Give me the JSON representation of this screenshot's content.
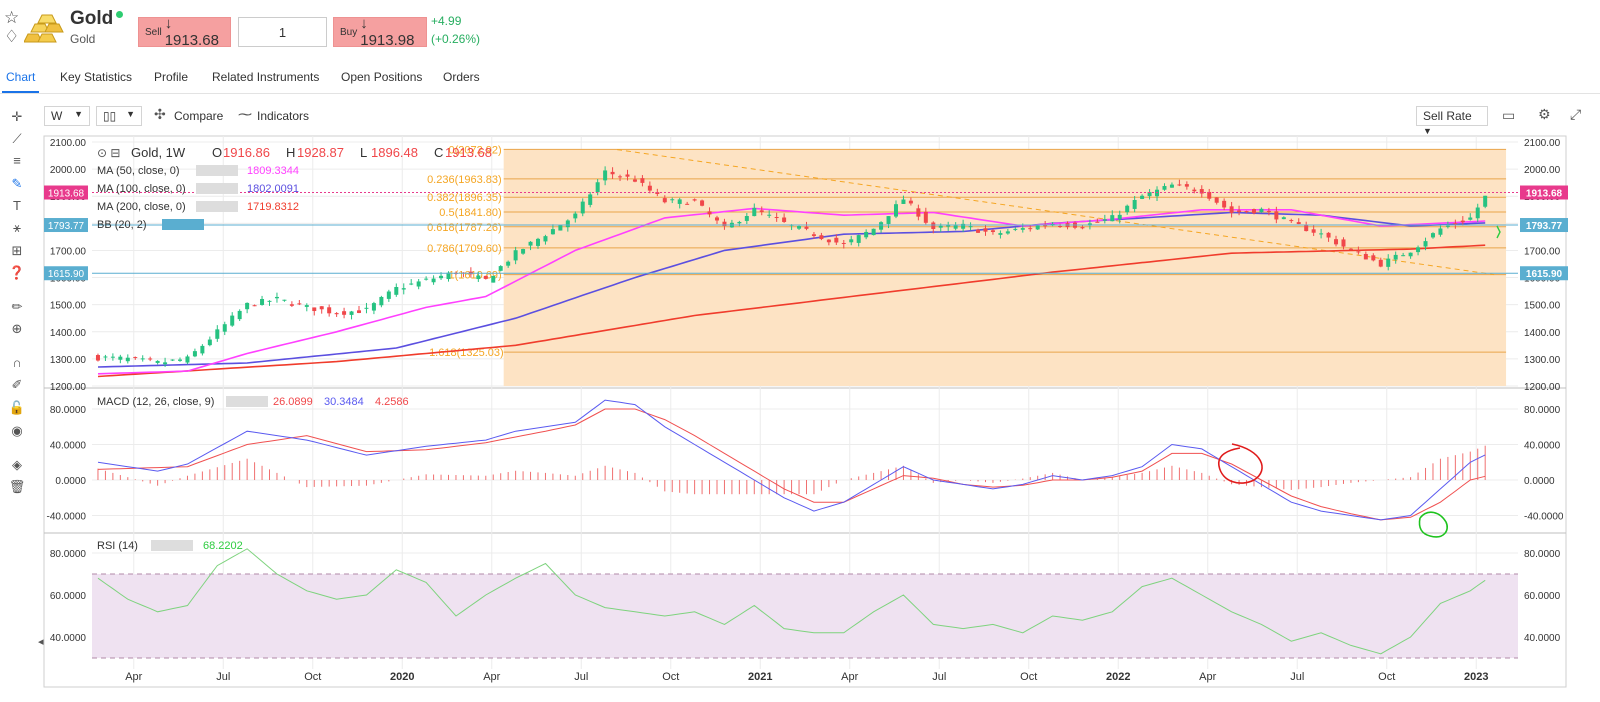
{
  "header": {
    "title": "Gold",
    "subtitle": "Gold",
    "sell_label": "Sell",
    "sell_price": "↓ 1913.68",
    "quantity": "1",
    "buy_label": "Buy",
    "buy_price": "↓ 1913.98",
    "change_abs": "+4.99",
    "change_pct": "(+0.26%)",
    "status_color": "#2ecc71"
  },
  "tabs": [
    "Chart",
    "Key Statistics",
    "Profile",
    "Related Instruments",
    "Open Positions",
    "Orders"
  ],
  "toolbar": {
    "interval": "W",
    "chart_type_icon": "candlestick-icon",
    "compare": "Compare",
    "indicators": "Indicators",
    "rate": "Sell Rate"
  },
  "tool_icons": [
    "crosshair-icon",
    "trendline-icon",
    "fib-icon",
    "brush-icon",
    "text-icon",
    "pattern-icon",
    "measure-icon",
    "help-icon",
    "ruler-icon",
    "zoom-icon",
    "magnet-icon",
    "lock-draw-icon",
    "lock-icon",
    "eye-icon",
    "layers-icon",
    "trash-icon"
  ],
  "legend": {
    "symbol": "Gold, 1W",
    "o_label": "O",
    "open": "1916.86",
    "h_label": "H",
    "high": "1928.87",
    "l_label": "L",
    "low": "1896.48",
    "c_label": "C",
    "close": "1913.68",
    "indicators": [
      {
        "label": "MA (50, close, 0)",
        "value": "1809.3344",
        "color": "#ff40ff"
      },
      {
        "label": "MA (100, close, 0)",
        "value": "1802.0091",
        "color": "#5b4fe0"
      },
      {
        "label": "MA (200, close, 0)",
        "value": "1719.8312",
        "color": "#f03c2c"
      },
      {
        "label": "BB (20, 2)",
        "value": "",
        "color": "#3aa0c8"
      }
    ]
  },
  "price_badges": [
    {
      "value": "1913.68",
      "y": 1913.68,
      "color": "#e83a8c"
    },
    {
      "value": "1793.77",
      "y": 1793.77,
      "color": "#5aaed0"
    },
    {
      "value": "1615.90",
      "y": 1615.9,
      "color": "#5aaed0"
    }
  ],
  "fib_levels": [
    {
      "label": "0(2072.92)",
      "y": 2072.92
    },
    {
      "label": "0.236(1963.83)",
      "y": 1963.83
    },
    {
      "label": "0.382(1896.35)",
      "y": 1896.35
    },
    {
      "label": "0.5(1841.80)",
      "y": 1841.8
    },
    {
      "label": "0.618(1787.26)",
      "y": 1787.26
    },
    {
      "label": "0.786(1709.60)",
      "y": 1709.6
    },
    {
      "label": "1(1610.69)",
      "y": 1610.69
    },
    {
      "label": "1.618(1325.03)",
      "y": 1325.03
    }
  ],
  "macd": {
    "label": "MACD (12, 26, close, 9)",
    "v1": "26.0899",
    "v2": "30.3484",
    "v3": "4.2586"
  },
  "rsi": {
    "label": "RSI (14)",
    "value": "68.2202"
  },
  "chart_data": {
    "type": "candlestick",
    "x_range": [
      "2019-02",
      "2023-02"
    ],
    "price_ylim": [
      1200,
      2100
    ],
    "price_ticks": [
      "2100.00",
      "2000.00",
      "1900.00",
      "1800.00",
      "1700.00",
      "1600.00",
      "1500.00",
      "1400.00",
      "1300.00",
      "1200.00"
    ],
    "macd_ticks": [
      "80.0000",
      "40.0000",
      "0.0000",
      "-40.0000"
    ],
    "rsi_ticks": [
      "80.0000",
      "60.0000",
      "40.0000"
    ],
    "x_ticks": [
      {
        "label": "Apr",
        "t": 1.2,
        "bold": false
      },
      {
        "label": "Jul",
        "t": 4.2,
        "bold": false
      },
      {
        "label": "Oct",
        "t": 7.2,
        "bold": false
      },
      {
        "label": "2020",
        "t": 10.2,
        "bold": true
      },
      {
        "label": "Apr",
        "t": 13.2,
        "bold": false
      },
      {
        "label": "Jul",
        "t": 16.2,
        "bold": false
      },
      {
        "label": "Oct",
        "t": 19.2,
        "bold": false
      },
      {
        "label": "2021",
        "t": 22.2,
        "bold": true
      },
      {
        "label": "Apr",
        "t": 25.2,
        "bold": false
      },
      {
        "label": "Jul",
        "t": 28.2,
        "bold": false
      },
      {
        "label": "Oct",
        "t": 31.2,
        "bold": false
      },
      {
        "label": "2022",
        "t": 34.2,
        "bold": true
      },
      {
        "label": "Apr",
        "t": 37.2,
        "bold": false
      },
      {
        "label": "Jul",
        "t": 40.2,
        "bold": false
      },
      {
        "label": "Oct",
        "t": 43.2,
        "bold": false
      },
      {
        "label": "2023",
        "t": 46.2,
        "bold": true
      }
    ],
    "close_anchors": [
      [
        0,
        1305
      ],
      [
        1,
        1300
      ],
      [
        2,
        1285
      ],
      [
        3,
        1300
      ],
      [
        4,
        1400
      ],
      [
        5,
        1500
      ],
      [
        6,
        1520
      ],
      [
        7,
        1490
      ],
      [
        8,
        1470
      ],
      [
        9,
        1480
      ],
      [
        10,
        1560
      ],
      [
        11,
        1590
      ],
      [
        12,
        1620
      ],
      [
        13,
        1590
      ],
      [
        14,
        1690
      ],
      [
        15,
        1760
      ],
      [
        16,
        1830
      ],
      [
        17,
        1990
      ],
      [
        18,
        1960
      ],
      [
        19,
        1880
      ],
      [
        20,
        1880
      ],
      [
        21,
        1780
      ],
      [
        22,
        1850
      ],
      [
        23,
        1800
      ],
      [
        24,
        1760
      ],
      [
        25,
        1720
      ],
      [
        26,
        1780
      ],
      [
        27,
        1890
      ],
      [
        28,
        1780
      ],
      [
        29,
        1790
      ],
      [
        30,
        1760
      ],
      [
        31,
        1780
      ],
      [
        32,
        1800
      ],
      [
        33,
        1790
      ],
      [
        34,
        1820
      ],
      [
        35,
        1900
      ],
      [
        36,
        1940
      ],
      [
        37,
        1920
      ],
      [
        38,
        1840
      ],
      [
        39,
        1850
      ],
      [
        40,
        1800
      ],
      [
        41,
        1760
      ],
      [
        42,
        1700
      ],
      [
        43,
        1650
      ],
      [
        44,
        1700
      ],
      [
        45,
        1780
      ],
      [
        46,
        1820
      ],
      [
        46.6,
        1913
      ]
    ],
    "ma50_anchors": [
      [
        0,
        1245
      ],
      [
        3,
        1255
      ],
      [
        5,
        1320
      ],
      [
        8,
        1400
      ],
      [
        11,
        1490
      ],
      [
        13,
        1530
      ],
      [
        16,
        1700
      ],
      [
        19,
        1820
      ],
      [
        22,
        1855
      ],
      [
        25,
        1830
      ],
      [
        28,
        1840
      ],
      [
        31,
        1790
      ],
      [
        34,
        1815
      ],
      [
        37,
        1850
      ],
      [
        40,
        1850
      ],
      [
        43,
        1790
      ],
      [
        46.6,
        1809
      ]
    ],
    "ma100_anchors": [
      [
        0,
        1270
      ],
      [
        5,
        1285
      ],
      [
        10,
        1340
      ],
      [
        14,
        1450
      ],
      [
        18,
        1600
      ],
      [
        21,
        1700
      ],
      [
        25,
        1760
      ],
      [
        29,
        1770
      ],
      [
        32,
        1800
      ],
      [
        35,
        1820
      ],
      [
        38,
        1840
      ],
      [
        41,
        1830
      ],
      [
        44,
        1790
      ],
      [
        46.6,
        1802
      ]
    ],
    "ma200_anchors": [
      [
        0,
        1235
      ],
      [
        8,
        1290
      ],
      [
        14,
        1350
      ],
      [
        20,
        1460
      ],
      [
        26,
        1540
      ],
      [
        32,
        1620
      ],
      [
        38,
        1690
      ],
      [
        44,
        1705
      ],
      [
        46.6,
        1720
      ]
    ],
    "macd_anchors": [
      [
        0,
        20
      ],
      [
        2,
        10
      ],
      [
        3,
        18
      ],
      [
        5,
        55
      ],
      [
        7,
        45
      ],
      [
        9,
        28
      ],
      [
        11,
        38
      ],
      [
        13,
        45
      ],
      [
        14,
        55
      ],
      [
        15,
        60
      ],
      [
        16,
        65
      ],
      [
        17,
        90
      ],
      [
        18,
        85
      ],
      [
        19,
        60
      ],
      [
        20,
        40
      ],
      [
        21,
        20
      ],
      [
        22,
        0
      ],
      [
        23,
        -20
      ],
      [
        24,
        -35
      ],
      [
        25,
        -25
      ],
      [
        26,
        -5
      ],
      [
        27,
        15
      ],
      [
        28,
        0
      ],
      [
        29,
        -5
      ],
      [
        30,
        -10
      ],
      [
        31,
        -5
      ],
      [
        32,
        5
      ],
      [
        33,
        0
      ],
      [
        34,
        5
      ],
      [
        35,
        15
      ],
      [
        36,
        40
      ],
      [
        37,
        35
      ],
      [
        38,
        15
      ],
      [
        39,
        -5
      ],
      [
        40,
        -25
      ],
      [
        41,
        -35
      ],
      [
        42,
        -40
      ],
      [
        43,
        -45
      ],
      [
        44,
        -40
      ],
      [
        45,
        -10
      ],
      [
        46,
        20
      ],
      [
        46.6,
        30
      ]
    ],
    "signal_anchors": [
      [
        0,
        12
      ],
      [
        3,
        15
      ],
      [
        5,
        40
      ],
      [
        7,
        50
      ],
      [
        9,
        32
      ],
      [
        11,
        34
      ],
      [
        13,
        42
      ],
      [
        15,
        55
      ],
      [
        16,
        62
      ],
      [
        17,
        80
      ],
      [
        18,
        80
      ],
      [
        19,
        68
      ],
      [
        20,
        50
      ],
      [
        21,
        30
      ],
      [
        22,
        10
      ],
      [
        23,
        -10
      ],
      [
        24,
        -25
      ],
      [
        25,
        -25
      ],
      [
        26,
        -10
      ],
      [
        27,
        5
      ],
      [
        28,
        2
      ],
      [
        29,
        -5
      ],
      [
        30,
        -8
      ],
      [
        31,
        -6
      ],
      [
        32,
        0
      ],
      [
        33,
        0
      ],
      [
        34,
        3
      ],
      [
        35,
        10
      ],
      [
        36,
        30
      ],
      [
        37,
        30
      ],
      [
        38,
        18
      ],
      [
        39,
        0
      ],
      [
        40,
        -18
      ],
      [
        41,
        -30
      ],
      [
        42,
        -38
      ],
      [
        43,
        -45
      ],
      [
        44,
        -42
      ],
      [
        45,
        -25
      ],
      [
        46,
        0
      ],
      [
        46.6,
        5
      ]
    ],
    "rsi_anchors": [
      [
        0,
        68
      ],
      [
        1,
        58
      ],
      [
        2,
        52
      ],
      [
        3,
        55
      ],
      [
        4,
        74
      ],
      [
        5,
        82
      ],
      [
        6,
        70
      ],
      [
        7,
        62
      ],
      [
        8,
        58
      ],
      [
        9,
        60
      ],
      [
        10,
        72
      ],
      [
        11,
        66
      ],
      [
        12,
        50
      ],
      [
        13,
        60
      ],
      [
        14,
        68
      ],
      [
        15,
        75
      ],
      [
        16,
        60
      ],
      [
        17,
        54
      ],
      [
        18,
        52
      ],
      [
        19,
        50
      ],
      [
        20,
        52
      ],
      [
        21,
        46
      ],
      [
        22,
        55
      ],
      [
        23,
        44
      ],
      [
        24,
        42
      ],
      [
        25,
        42
      ],
      [
        26,
        52
      ],
      [
        27,
        60
      ],
      [
        28,
        46
      ],
      [
        29,
        44
      ],
      [
        30,
        46
      ],
      [
        31,
        42
      ],
      [
        32,
        50
      ],
      [
        33,
        48
      ],
      [
        34,
        52
      ],
      [
        35,
        64
      ],
      [
        36,
        68
      ],
      [
        37,
        60
      ],
      [
        38,
        52
      ],
      [
        39,
        46
      ],
      [
        40,
        38
      ],
      [
        41,
        42
      ],
      [
        42,
        36
      ],
      [
        43,
        32
      ],
      [
        44,
        40
      ],
      [
        45,
        56
      ],
      [
        46,
        62
      ],
      [
        46.6,
        68
      ]
    ]
  }
}
